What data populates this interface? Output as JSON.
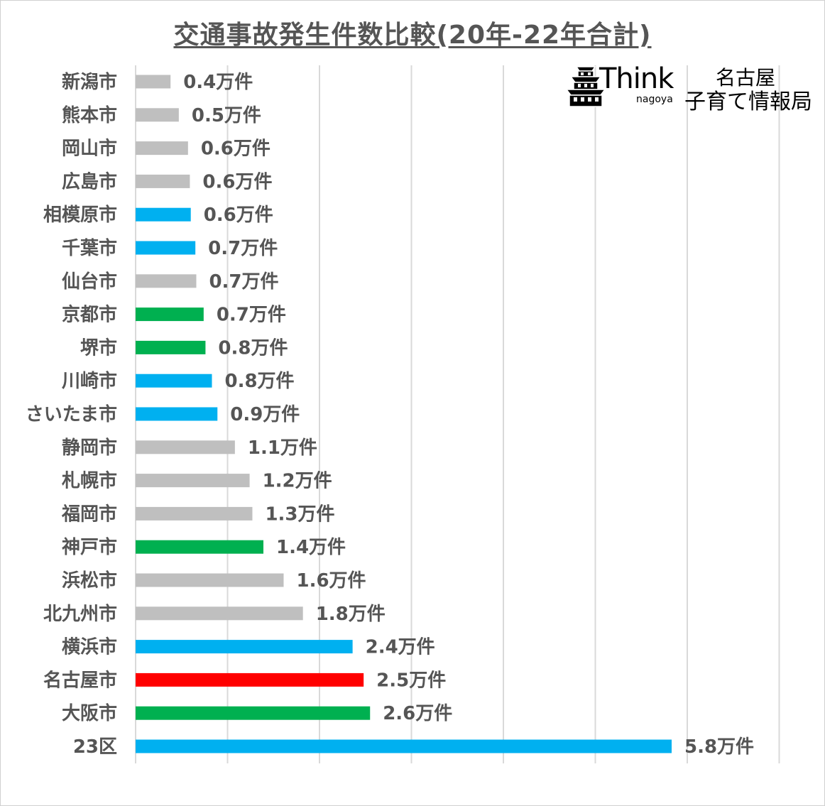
{
  "chart_data": {
    "type": "bar",
    "orientation": "horizontal",
    "title": "交通事故発生件数比較(20年-22年合計)",
    "unit": "万件",
    "categories": [
      "新潟市",
      "熊本市",
      "岡山市",
      "広島市",
      "相模原市",
      "千葉市",
      "仙台市",
      "京都市",
      "堺市",
      "川崎市",
      "さいたま市",
      "静岡市",
      "札幌市",
      "福岡市",
      "神戸市",
      "浜松市",
      "北九州市",
      "横浜市",
      "名古屋市",
      "大阪市",
      "23区"
    ],
    "values": [
      0.4,
      0.5,
      0.6,
      0.6,
      0.6,
      0.7,
      0.7,
      0.7,
      0.8,
      0.8,
      0.9,
      1.1,
      1.2,
      1.3,
      1.4,
      1.6,
      1.8,
      2.4,
      2.5,
      2.6,
      5.8
    ],
    "precise_values": [
      0.38,
      0.47,
      0.57,
      0.59,
      0.6,
      0.65,
      0.66,
      0.74,
      0.76,
      0.83,
      0.89,
      1.08,
      1.24,
      1.27,
      1.39,
      1.61,
      1.82,
      2.36,
      2.48,
      2.55,
      5.83
    ],
    "data_labels": [
      "0.4万件",
      "0.5万件",
      "0.6万件",
      "0.6万件",
      "0.6万件",
      "0.7万件",
      "0.7万件",
      "0.7万件",
      "0.8万件",
      "0.8万件",
      "0.9万件",
      "1.1万件",
      "1.2万件",
      "1.3万件",
      "1.4万件",
      "1.6万件",
      "1.8万件",
      "2.4万件",
      "2.5万件",
      "2.6万件",
      "5.8万件"
    ],
    "bar_colors": [
      "#bfbfbf",
      "#bfbfbf",
      "#bfbfbf",
      "#bfbfbf",
      "#00b0f0",
      "#00b0f0",
      "#bfbfbf",
      "#00b050",
      "#00b050",
      "#00b0f0",
      "#00b0f0",
      "#bfbfbf",
      "#bfbfbf",
      "#bfbfbf",
      "#00b050",
      "#bfbfbf",
      "#bfbfbf",
      "#00b0f0",
      "#ff0000",
      "#00b050",
      "#00b0f0"
    ],
    "xlim": [
      0,
      7
    ],
    "grid": true,
    "legend": "none"
  },
  "logo": {
    "think": "Think",
    "nagoya": "nagoya",
    "line1": "名古屋",
    "line2": "子育て情報局"
  },
  "colors": {
    "gray": "#bfbfbf",
    "blue": "#00b0f0",
    "green": "#00b050",
    "red": "#ff0000",
    "text": "#555555",
    "grid": "#d9d9d9"
  }
}
